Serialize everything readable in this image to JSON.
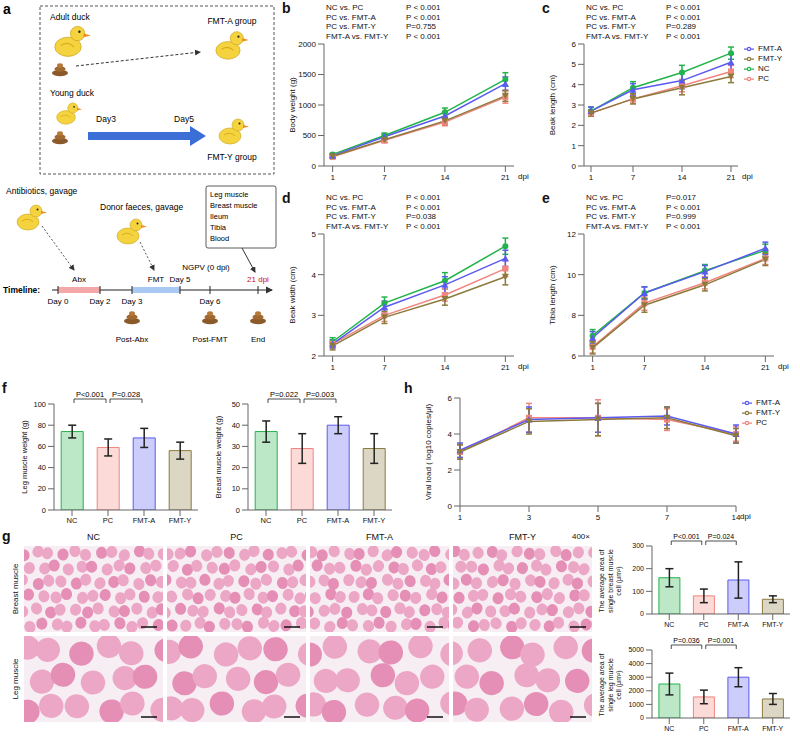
{
  "diagram": {
    "panel": "a",
    "box": {
      "adult": "Adult duck",
      "fmt_a": "FMT-A group",
      "young": "Young duck",
      "day_start": "Day3",
      "day_end": "Day5",
      "fmt_y": "FMT-Y group"
    },
    "antibiotics": "Antibiotics, gavage",
    "donor": "Donor faeces, gavage",
    "sampling": [
      "Leg muscle",
      "Breast muscle",
      "Ileum",
      "Tibia",
      "Blood"
    ],
    "timeline": {
      "label": "Timeline:",
      "abx": "Abx",
      "fmt": "FMT",
      "challenge": "NGPV (0 dpi)",
      "end_time": "21 dpi",
      "days": [
        "Day 0",
        "Day 2",
        "Day 3",
        "Day 5",
        "Day 6"
      ],
      "samples": [
        "Post-Abx",
        "Post-FMT",
        "End"
      ]
    }
  },
  "histology": {
    "panel": "g",
    "columns": [
      "NC",
      "PC",
      "FMT-A",
      "FMT-Y"
    ],
    "rows": [
      "Breast muscle",
      "Leg muscle"
    ],
    "magnification": "400×"
  },
  "chart_data": [
    {
      "panel": "b",
      "type": "line",
      "y_label": "Body weight (g)",
      "x_label": "dpi",
      "x": [
        1,
        7,
        14,
        21
      ],
      "xlim": [
        0,
        22
      ],
      "xticks": [
        1,
        7,
        14,
        21
      ],
      "ylim": [
        0,
        2000
      ],
      "yticks": [
        0,
        500,
        1000,
        1500,
        2000
      ],
      "grid": false,
      "annotations": [
        {
          "comparison": "NC vs. PC",
          "p": "P < 0.001"
        },
        {
          "comparison": "PC vs. FMT-A",
          "p": "P < 0.001"
        },
        {
          "comparison": "PC vs. FMT-Y",
          "p": "P=0.755"
        },
        {
          "comparison": "FMT-A vs. FMT-Y",
          "p": "P < 0.001"
        }
      ],
      "series": [
        {
          "name": "NC",
          "color": "#22b34a",
          "marker": "circle",
          "values": [
            190,
            500,
            880,
            1420
          ],
          "errors": [
            20,
            40,
            70,
            110
          ]
        },
        {
          "name": "PC",
          "color": "#f2857e",
          "marker": "square",
          "values": [
            150,
            420,
            720,
            1130
          ],
          "errors": [
            20,
            40,
            60,
            100
          ]
        },
        {
          "name": "FMT-A",
          "color": "#5a5af2",
          "marker": "triangle",
          "values": [
            170,
            480,
            820,
            1350
          ],
          "errors": [
            20,
            40,
            60,
            110
          ]
        },
        {
          "name": "FMT-Y",
          "color": "#8c7a3c",
          "marker": "triangle-down",
          "values": [
            160,
            430,
            740,
            1150
          ],
          "errors": [
            20,
            40,
            60,
            90
          ]
        }
      ]
    },
    {
      "panel": "c",
      "type": "line",
      "y_label": "Beak length (cm)",
      "x_label": "dpi",
      "x": [
        1,
        7,
        14,
        21
      ],
      "xlim": [
        0,
        22
      ],
      "xticks": [
        1,
        7,
        14,
        21
      ],
      "ylim": [
        0,
        6
      ],
      "yticks": [
        0,
        1,
        2,
        3,
        4,
        5,
        6
      ],
      "grid": false,
      "legend": "right",
      "annotations": [
        {
          "comparison": "NC vs. PC",
          "p": "P < 0.001"
        },
        {
          "comparison": "PC vs. FMT-A",
          "p": "P < 0.001"
        },
        {
          "comparison": "PC vs. FMT-Y",
          "p": "P=0.289"
        },
        {
          "comparison": "FMT-A vs. FMT-Y",
          "p": "P < 0.001"
        }
      ],
      "series": [
        {
          "name": "NC",
          "color": "#22b34a",
          "marker": "circle",
          "values": [
            2.7,
            3.85,
            4.6,
            5.55
          ],
          "errors": [
            0.2,
            0.3,
            0.35,
            0.3
          ]
        },
        {
          "name": "PC",
          "color": "#f2857e",
          "marker": "square",
          "values": [
            2.6,
            3.3,
            3.95,
            4.65
          ],
          "errors": [
            0.15,
            0.2,
            0.3,
            0.3
          ]
        },
        {
          "name": "FMT-A",
          "color": "#5a5af2",
          "marker": "triangle",
          "values": [
            2.7,
            3.75,
            4.2,
            5.1
          ],
          "errors": [
            0.2,
            0.3,
            0.4,
            0.4
          ]
        },
        {
          "name": "FMT-Y",
          "color": "#8c7a3c",
          "marker": "triangle-down",
          "values": [
            2.6,
            3.3,
            3.85,
            4.4
          ],
          "errors": [
            0.15,
            0.25,
            0.35,
            0.3
          ]
        }
      ]
    },
    {
      "panel": "d",
      "type": "line",
      "y_label": "Beak width (cm)",
      "x_label": "dpi",
      "x": [
        1,
        7,
        14,
        21
      ],
      "xlim": [
        0,
        22
      ],
      "xticks": [
        1,
        7,
        14,
        21
      ],
      "ylim": [
        2,
        5
      ],
      "yticks": [
        2,
        3,
        4,
        5
      ],
      "grid": false,
      "annotations": [
        {
          "comparison": "NC vs. PC",
          "p": "P < 0.001"
        },
        {
          "comparison": "PC vs. FMT-A",
          "p": "P < 0.001"
        },
        {
          "comparison": "PC vs. FMT-Y",
          "p": "P=0.038"
        },
        {
          "comparison": "FMT-A vs. FMT-Y",
          "p": "P < 0.001"
        }
      ],
      "series": [
        {
          "name": "NC",
          "color": "#22b34a",
          "marker": "circle",
          "values": [
            2.35,
            3.3,
            3.85,
            4.7
          ],
          "errors": [
            0.1,
            0.15,
            0.2,
            0.2
          ]
        },
        {
          "name": "PC",
          "color": "#f2857e",
          "marker": "square",
          "values": [
            2.3,
            3.0,
            3.5,
            4.15
          ],
          "errors": [
            0.1,
            0.15,
            0.15,
            0.2
          ]
        },
        {
          "name": "FMT-A",
          "color": "#5a5af2",
          "marker": "triangle",
          "values": [
            2.3,
            3.2,
            3.75,
            4.4
          ],
          "errors": [
            0.1,
            0.15,
            0.2,
            0.2
          ]
        },
        {
          "name": "FMT-Y",
          "color": "#8c7a3c",
          "marker": "triangle-down",
          "values": [
            2.25,
            2.95,
            3.4,
            3.95
          ],
          "errors": [
            0.1,
            0.15,
            0.15,
            0.2
          ]
        }
      ]
    },
    {
      "panel": "e",
      "type": "line",
      "y_label": "Tibia length (cm)",
      "x_label": "dpi",
      "x": [
        1,
        7,
        14,
        21
      ],
      "xlim": [
        0,
        22
      ],
      "xticks": [
        1,
        7,
        14,
        21
      ],
      "ylim": [
        6,
        12
      ],
      "yticks": [
        6,
        8,
        10,
        12
      ],
      "grid": false,
      "annotations": [
        {
          "comparison": "NC vs. PC",
          "p": "P=0.017"
        },
        {
          "comparison": "PC vs. FMT-A",
          "p": "P < 0.001"
        },
        {
          "comparison": "PC vs. FMT-Y",
          "p": "P=0.999"
        },
        {
          "comparison": "FMT-A vs. FMT-Y",
          "p": "P < 0.001"
        }
      ],
      "series": [
        {
          "name": "NC",
          "color": "#22b34a",
          "marker": "circle",
          "values": [
            7.0,
            9.1,
            10.2,
            11.2
          ],
          "errors": [
            0.3,
            0.3,
            0.3,
            0.3
          ]
        },
        {
          "name": "PC",
          "color": "#f2857e",
          "marker": "square",
          "values": [
            6.45,
            8.6,
            9.6,
            10.8
          ],
          "errors": [
            0.3,
            0.35,
            0.3,
            0.3
          ]
        },
        {
          "name": "FMT-A",
          "color": "#5a5af2",
          "marker": "triangle",
          "values": [
            6.9,
            9.1,
            10.15,
            11.3
          ],
          "errors": [
            0.3,
            0.3,
            0.3,
            0.3
          ]
        },
        {
          "name": "FMT-Y",
          "color": "#8c7a3c",
          "marker": "triangle-down",
          "values": [
            6.4,
            8.5,
            9.5,
            10.75
          ],
          "errors": [
            0.3,
            0.35,
            0.3,
            0.3
          ]
        }
      ]
    },
    {
      "panel": "f",
      "type": "bar",
      "y_label": "Leg muscle weight (g)",
      "categories": [
        "NC",
        "PC",
        "FMT-A",
        "FMT-Y"
      ],
      "values": [
        74,
        59,
        68,
        56
      ],
      "errors": [
        6,
        8,
        9,
        8
      ],
      "colors": [
        "#22b34a",
        "#f2857e",
        "#5a5af2",
        "#8c7a3c"
      ],
      "ylim": [
        0,
        100
      ],
      "yticks": [
        0,
        20,
        40,
        60,
        80,
        100
      ],
      "grid": false,
      "comparisons": [
        {
          "pair": [
            "NC",
            "PC"
          ],
          "label": "P<0.001"
        },
        {
          "pair": [
            "PC",
            "FMT-A"
          ],
          "label": "P=0.028"
        }
      ]
    },
    {
      "panel": "f",
      "type": "bar",
      "y_label": "Breast muscle weight (g)",
      "categories": [
        "NC",
        "PC",
        "FMT-A",
        "FMT-Y"
      ],
      "values": [
        37,
        29,
        40,
        29
      ],
      "errors": [
        5,
        7,
        4,
        7
      ],
      "colors": [
        "#22b34a",
        "#f2857e",
        "#5a5af2",
        "#8c7a3c"
      ],
      "ylim": [
        0,
        50
      ],
      "yticks": [
        0,
        10,
        20,
        30,
        40,
        50
      ],
      "grid": false,
      "comparisons": [
        {
          "pair": [
            "NC",
            "PC"
          ],
          "label": "P=0.022"
        },
        {
          "pair": [
            "PC",
            "FMT-A"
          ],
          "label": "P=0.003"
        }
      ]
    },
    {
      "panel": "h",
      "type": "line",
      "y_label": "Viral load ( log10 copies/μl)",
      "x_label": "dpi",
      "categories": [
        "1",
        "3",
        "5",
        "7",
        "14"
      ],
      "ylim": [
        0,
        6
      ],
      "yticks": [
        0,
        2,
        4,
        6
      ],
      "grid": false,
      "legend": "right",
      "series": [
        {
          "name": "PC",
          "color": "#f2857e",
          "marker": "square",
          "values": [
            3.0,
            4.9,
            4.9,
            4.8,
            4.0
          ],
          "errors": [
            0.4,
            0.8,
            1.0,
            0.6,
            0.4
          ]
        },
        {
          "name": "FMT-A",
          "color": "#5a5af2",
          "marker": "triangle",
          "values": [
            3.1,
            4.8,
            4.9,
            5.0,
            4.0
          ],
          "errors": [
            0.4,
            0.7,
            0.8,
            0.5,
            0.5
          ]
        },
        {
          "name": "FMT-Y",
          "color": "#8c7a3c",
          "marker": "triangle-down",
          "values": [
            3.0,
            4.7,
            4.8,
            4.9,
            3.9
          ],
          "errors": [
            0.4,
            0.7,
            0.9,
            0.6,
            0.4
          ]
        }
      ]
    },
    {
      "panel": "g",
      "type": "bar",
      "y_label": "The average area of single breast muscle cell (μm²)",
      "categories": [
        "NC",
        "PC",
        "FMT-A",
        "FMT-Y"
      ],
      "values": [
        160,
        80,
        150,
        65
      ],
      "errors": [
        40,
        30,
        80,
        15
      ],
      "colors": [
        "#22b34a",
        "#f2857e",
        "#5a5af2",
        "#8c7a3c"
      ],
      "ylim": [
        0,
        300
      ],
      "yticks": [
        0,
        100,
        200,
        300
      ],
      "grid": false,
      "comparisons": [
        {
          "pair": [
            "NC",
            "PC"
          ],
          "label": "P<0.001"
        },
        {
          "pair": [
            "PC",
            "FMT-A"
          ],
          "label": "P=0.024"
        }
      ]
    },
    {
      "panel": "g",
      "type": "bar",
      "y_label": "The average area of single leg muscle cell (μm²)",
      "categories": [
        "NC",
        "PC",
        "FMT-A",
        "FMT-Y"
      ],
      "values": [
        2500,
        1550,
        3000,
        1400
      ],
      "errors": [
        800,
        500,
        700,
        400
      ],
      "colors": [
        "#22b34a",
        "#f2857e",
        "#5a5af2",
        "#8c7a3c"
      ],
      "ylim": [
        0,
        5000
      ],
      "yticks": [
        0,
        1000,
        2000,
        3000,
        4000,
        5000
      ],
      "grid": false,
      "comparisons": [
        {
          "pair": [
            "NC",
            "PC"
          ],
          "label": "P=0.036"
        },
        {
          "pair": [
            "PC",
            "FMT-A"
          ],
          "label": "P=0.001"
        }
      ]
    }
  ]
}
